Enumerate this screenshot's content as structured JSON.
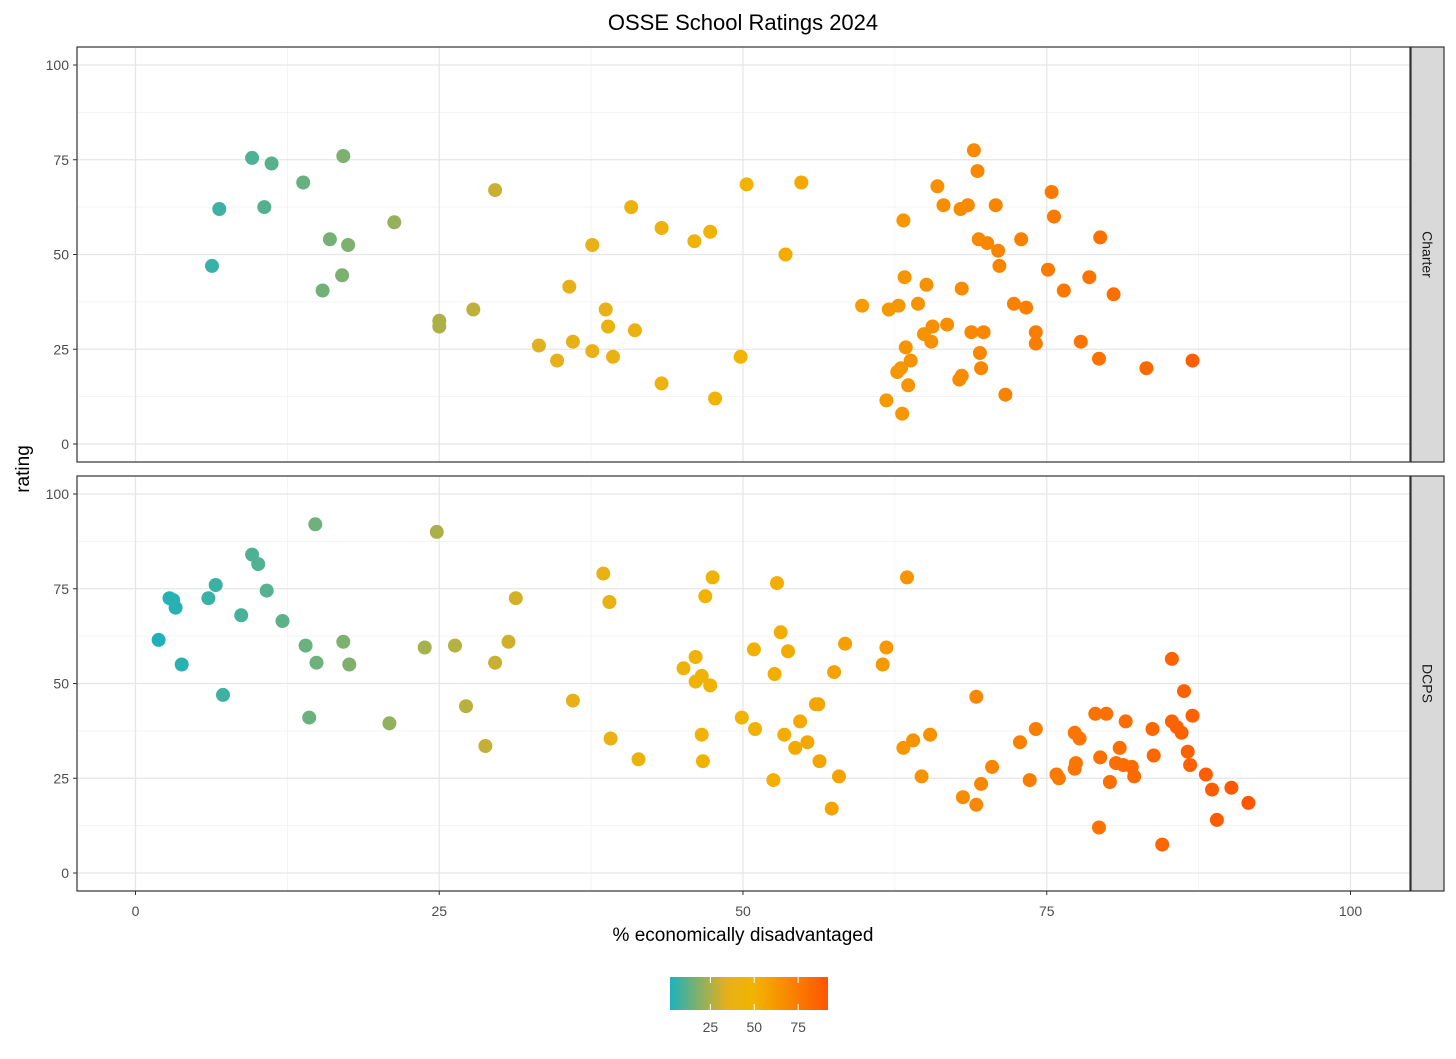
{
  "chart_data": {
    "type": "scatter",
    "title": "OSSE School Ratings 2024",
    "xlabel": "% economically disadvantaged",
    "ylabel": "rating",
    "xlim": [
      -5,
      105
    ],
    "ylim": [
      -5,
      105
    ],
    "x_ticks": [
      0,
      25,
      50,
      75,
      100
    ],
    "y_ticks": [
      0,
      25,
      50,
      75,
      100
    ],
    "grid": true,
    "color_scale": {
      "variable": "% economically disadvantaged",
      "range": [
        2,
        92
      ],
      "ticks": [
        25,
        50,
        75
      ],
      "colors": [
        "#1fb1bb",
        "#e6b01a",
        "#f2b400",
        "#ff5500"
      ]
    },
    "facets": [
      {
        "name": "Charter",
        "points": [
          [
            6.3,
            47
          ],
          [
            6.9,
            62
          ],
          [
            9.6,
            75.5
          ],
          [
            10.6,
            62.5
          ],
          [
            11.2,
            74
          ],
          [
            13.8,
            69
          ],
          [
            15.4,
            40.5
          ],
          [
            16,
            54
          ],
          [
            17,
            44.5
          ],
          [
            17.1,
            76
          ],
          [
            17.5,
            52.5
          ],
          [
            21.3,
            58.5
          ],
          [
            25,
            32.5
          ],
          [
            25,
            31
          ],
          [
            27.8,
            35.5
          ],
          [
            29.6,
            67
          ],
          [
            33.2,
            26
          ],
          [
            34.7,
            22
          ],
          [
            35.7,
            41.5
          ],
          [
            36,
            27
          ],
          [
            37.6,
            24.5
          ],
          [
            37.6,
            52.5
          ],
          [
            38.7,
            35.5
          ],
          [
            38.9,
            31
          ],
          [
            39.3,
            23
          ],
          [
            40.8,
            62.5
          ],
          [
            41.1,
            30
          ],
          [
            43.3,
            16
          ],
          [
            43.3,
            57
          ],
          [
            46,
            53.5
          ],
          [
            47.3,
            56
          ],
          [
            47.7,
            12
          ],
          [
            49.8,
            23
          ],
          [
            50.3,
            68.5
          ],
          [
            53.5,
            50
          ],
          [
            54.8,
            69
          ],
          [
            59.8,
            36.5
          ],
          [
            61.8,
            11.5
          ],
          [
            62,
            35.5
          ],
          [
            62.7,
            19
          ],
          [
            62.8,
            36.5
          ],
          [
            63,
            20
          ],
          [
            63.1,
            8
          ],
          [
            63.2,
            59
          ],
          [
            63.3,
            44
          ],
          [
            63.4,
            25.5
          ],
          [
            63.6,
            15.5
          ],
          [
            63.8,
            22
          ],
          [
            64.4,
            37
          ],
          [
            64.9,
            29
          ],
          [
            65.1,
            42
          ],
          [
            65.5,
            27
          ],
          [
            65.6,
            31
          ],
          [
            66,
            68
          ],
          [
            66.5,
            63
          ],
          [
            66.8,
            31.5
          ],
          [
            67.8,
            17
          ],
          [
            67.9,
            62
          ],
          [
            68,
            41
          ],
          [
            68,
            18
          ],
          [
            68.5,
            63
          ],
          [
            68.8,
            29.5
          ],
          [
            69,
            77.5
          ],
          [
            69.3,
            72
          ],
          [
            69.4,
            54
          ],
          [
            69.5,
            24
          ],
          [
            69.6,
            20
          ],
          [
            69.8,
            29.5
          ],
          [
            70.1,
            53
          ],
          [
            70.8,
            63
          ],
          [
            71,
            51
          ],
          [
            71.1,
            47
          ],
          [
            71.6,
            13
          ],
          [
            72.3,
            37
          ],
          [
            72.9,
            54
          ],
          [
            73.3,
            36
          ],
          [
            74.1,
            29.5
          ],
          [
            74.1,
            26.5
          ],
          [
            75.1,
            46
          ],
          [
            75.4,
            66.5
          ],
          [
            75.6,
            60
          ],
          [
            76.4,
            40.5
          ],
          [
            77.8,
            27
          ],
          [
            78.5,
            44
          ],
          [
            79.3,
            22.5
          ],
          [
            79.4,
            54.5
          ],
          [
            80.5,
            39.5
          ],
          [
            83.2,
            20
          ],
          [
            87,
            22
          ]
        ]
      },
      {
        "name": "DCPS",
        "points": [
          [
            1.9,
            61.5
          ],
          [
            2.8,
            72.5
          ],
          [
            3.1,
            72
          ],
          [
            3.3,
            70
          ],
          [
            3.8,
            55
          ],
          [
            6,
            72.5
          ],
          [
            6.6,
            76
          ],
          [
            7.2,
            47
          ],
          [
            8.7,
            68
          ],
          [
            9.6,
            84
          ],
          [
            10.1,
            81.5
          ],
          [
            10.8,
            74.5
          ],
          [
            12.1,
            66.5
          ],
          [
            14,
            60
          ],
          [
            14.3,
            41
          ],
          [
            14.8,
            92
          ],
          [
            14.9,
            55.5
          ],
          [
            17.1,
            61
          ],
          [
            17.6,
            55
          ],
          [
            20.9,
            39.5
          ],
          [
            23.8,
            59.5
          ],
          [
            24.8,
            90
          ],
          [
            26.3,
            60
          ],
          [
            27.2,
            44
          ],
          [
            28.8,
            33.5
          ],
          [
            29.6,
            55.5
          ],
          [
            30.7,
            61
          ],
          [
            31.3,
            72.5
          ],
          [
            36,
            45.5
          ],
          [
            38.5,
            79
          ],
          [
            39,
            71.5
          ],
          [
            39.1,
            35.5
          ],
          [
            41.4,
            30
          ],
          [
            45.1,
            54
          ],
          [
            46.1,
            57
          ],
          [
            46.1,
            50.5
          ],
          [
            46.6,
            52
          ],
          [
            46.6,
            36.5
          ],
          [
            46.7,
            29.5
          ],
          [
            46.9,
            73
          ],
          [
            47.3,
            49.5
          ],
          [
            47.5,
            78
          ],
          [
            49.9,
            41
          ],
          [
            50.9,
            59
          ],
          [
            51,
            38
          ],
          [
            52.5,
            24.5
          ],
          [
            52.6,
            52.5
          ],
          [
            52.8,
            76.5
          ],
          [
            53.1,
            63.5
          ],
          [
            53.4,
            36.5
          ],
          [
            53.7,
            58.5
          ],
          [
            54.3,
            33
          ],
          [
            54.7,
            40
          ],
          [
            55.3,
            34.5
          ],
          [
            56,
            44.5
          ],
          [
            56.2,
            44.5
          ],
          [
            56.3,
            29.5
          ],
          [
            57.3,
            17
          ],
          [
            57.5,
            53
          ],
          [
            57.9,
            25.5
          ],
          [
            58.4,
            60.5
          ],
          [
            61.5,
            55
          ],
          [
            61.8,
            59.5
          ],
          [
            63.2,
            33
          ],
          [
            63.5,
            78
          ],
          [
            64,
            35
          ],
          [
            64.7,
            25.5
          ],
          [
            65.4,
            36.5
          ],
          [
            68.1,
            20
          ],
          [
            69.2,
            46.5
          ],
          [
            69.2,
            18
          ],
          [
            69.6,
            23.5
          ],
          [
            70.5,
            28
          ],
          [
            72.8,
            34.5
          ],
          [
            73.6,
            24.5
          ],
          [
            74.1,
            38
          ],
          [
            75.8,
            26
          ],
          [
            76,
            25
          ],
          [
            77.3,
            27.5
          ],
          [
            77.3,
            37
          ],
          [
            77.4,
            29
          ],
          [
            77.7,
            35.5
          ],
          [
            79,
            42
          ],
          [
            79.3,
            12
          ],
          [
            79.4,
            30.5
          ],
          [
            79.9,
            42
          ],
          [
            80.2,
            24
          ],
          [
            80.7,
            29
          ],
          [
            81,
            33
          ],
          [
            81.3,
            28.5
          ],
          [
            81.5,
            40
          ],
          [
            82,
            28
          ],
          [
            82.2,
            25.5
          ],
          [
            83.7,
            38
          ],
          [
            83.8,
            31
          ],
          [
            84.5,
            7.5
          ],
          [
            85.3,
            56.5
          ],
          [
            85.3,
            40
          ],
          [
            85.7,
            38.5
          ],
          [
            86.1,
            37
          ],
          [
            86.3,
            48
          ],
          [
            86.6,
            32
          ],
          [
            86.8,
            28.5
          ],
          [
            87,
            41.5
          ],
          [
            88.1,
            26
          ],
          [
            88.6,
            22
          ],
          [
            89,
            14
          ],
          [
            90.2,
            22.5
          ],
          [
            91.6,
            18.5
          ]
        ]
      }
    ]
  }
}
